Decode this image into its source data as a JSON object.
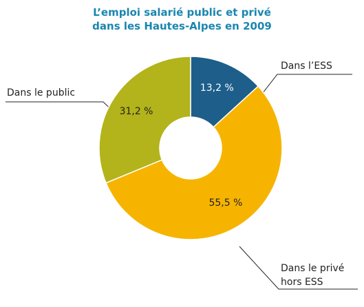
{
  "chart_data": {
    "type": "donut",
    "title": "L’emploi salarié public et privé\ndans les Hautes-Alpes en 2009",
    "categories": [
      "Dans l’ESS",
      "Dans le privé\nhors ESS",
      "Dans le public"
    ],
    "values": [
      13.2,
      55.5,
      31.2
    ],
    "value_labels": [
      "13,2 %",
      "55,5 %",
      "31,2 %"
    ],
    "colors": [
      "#1d5e8a",
      "#f6b400",
      "#b3b31b"
    ]
  }
}
